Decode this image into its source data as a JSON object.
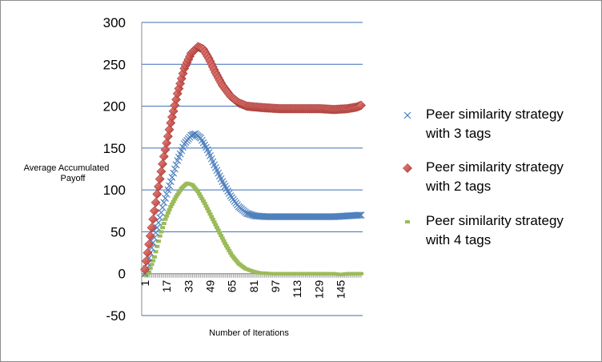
{
  "chart_data": {
    "type": "scatter",
    "ylabel_lines": [
      "Average Accumulated",
      "Payoff"
    ],
    "xlabel": "Number of  Iterations",
    "ylim": [
      -50,
      300
    ],
    "yticks": [
      -50,
      0,
      50,
      100,
      150,
      200,
      250,
      300
    ],
    "xlim": [
      1,
      160
    ],
    "xticks": [
      1,
      17,
      33,
      49,
      65,
      81,
      97,
      113,
      129,
      145
    ],
    "grid": true,
    "legend_position": "right",
    "series": [
      {
        "name_lines": [
          "Peer similarity strategy",
          "with 3 tags"
        ],
        "marker": "x",
        "color": "#4f81bd",
        "points": [
          [
            1,
            0
          ],
          [
            5,
            25
          ],
          [
            10,
            55
          ],
          [
            15,
            85
          ],
          [
            20,
            110
          ],
          [
            25,
            135
          ],
          [
            30,
            155
          ],
          [
            35,
            165
          ],
          [
            38,
            167
          ],
          [
            42,
            162
          ],
          [
            47,
            148
          ],
          [
            52,
            130
          ],
          [
            58,
            110
          ],
          [
            64,
            93
          ],
          [
            70,
            80
          ],
          [
            76,
            72
          ],
          [
            82,
            69
          ],
          [
            90,
            68
          ],
          [
            100,
            68
          ],
          [
            110,
            68
          ],
          [
            120,
            68
          ],
          [
            130,
            68
          ],
          [
            140,
            68
          ],
          [
            150,
            69
          ],
          [
            160,
            70
          ]
        ]
      },
      {
        "name_lines": [
          "Peer similarity strategy",
          "with 2 tags"
        ],
        "marker": "diamond",
        "color": "#c0504d",
        "points": [
          [
            1,
            5
          ],
          [
            5,
            45
          ],
          [
            10,
            95
          ],
          [
            15,
            140
          ],
          [
            20,
            180
          ],
          [
            25,
            215
          ],
          [
            30,
            245
          ],
          [
            35,
            263
          ],
          [
            40,
            271
          ],
          [
            44,
            268
          ],
          [
            48,
            257
          ],
          [
            53,
            240
          ],
          [
            58,
            225
          ],
          [
            64,
            212
          ],
          [
            70,
            204
          ],
          [
            76,
            200
          ],
          [
            82,
            199
          ],
          [
            90,
            198
          ],
          [
            100,
            197
          ],
          [
            110,
            197
          ],
          [
            120,
            197
          ],
          [
            130,
            197
          ],
          [
            140,
            196
          ],
          [
            150,
            197
          ],
          [
            157,
            199
          ],
          [
            160,
            201
          ]
        ]
      },
      {
        "name_lines": [
          "Peer similarity strategy",
          "with 4 tags"
        ],
        "marker": "dash",
        "color": "#9bbb59",
        "points": [
          [
            1,
            -2
          ],
          [
            4,
            2
          ],
          [
            8,
            20
          ],
          [
            12,
            45
          ],
          [
            16,
            65
          ],
          [
            20,
            80
          ],
          [
            24,
            92
          ],
          [
            28,
            102
          ],
          [
            32,
            108
          ],
          [
            36,
            106
          ],
          [
            40,
            98
          ],
          [
            45,
            84
          ],
          [
            50,
            68
          ],
          [
            55,
            52
          ],
          [
            60,
            36
          ],
          [
            65,
            22
          ],
          [
            70,
            12
          ],
          [
            75,
            6
          ],
          [
            80,
            3
          ],
          [
            85,
            1
          ],
          [
            95,
            0
          ],
          [
            110,
            0
          ],
          [
            125,
            0
          ],
          [
            140,
            0
          ],
          [
            145,
            -1
          ],
          [
            150,
            0
          ],
          [
            160,
            0
          ]
        ]
      }
    ]
  }
}
